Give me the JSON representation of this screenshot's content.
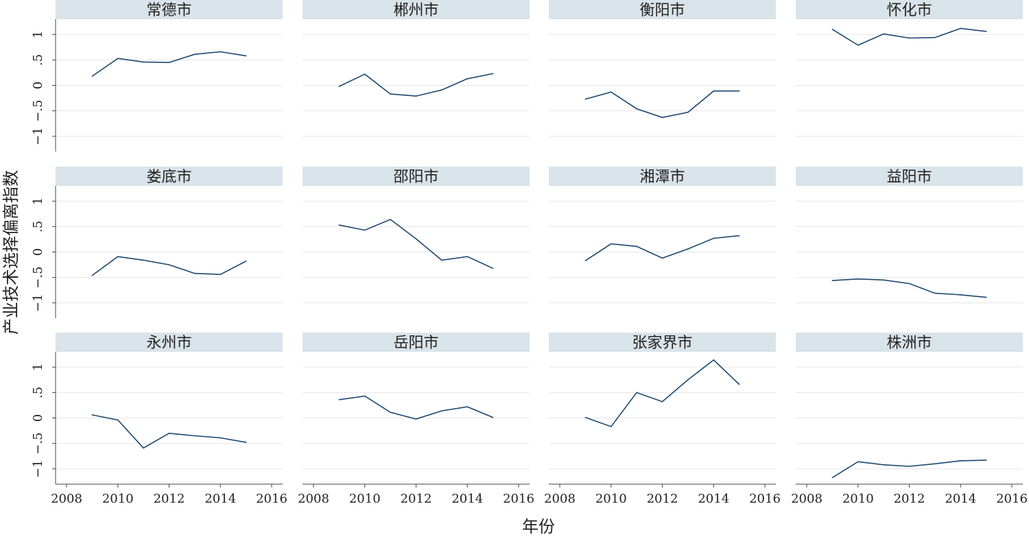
{
  "chart_data": {
    "type": "line",
    "xlabel": "年份",
    "ylabel": "产业技术选择偏离指数",
    "xlim": [
      2008,
      2016
    ],
    "ylim": [
      -1.3,
      1.3
    ],
    "x_ticks": [
      2008,
      2010,
      2012,
      2014,
      2016
    ],
    "y_ticks": [
      1,
      0.5,
      0,
      -0.5,
      -1
    ],
    "y_tick_labels": [
      "1",
      ".5",
      "0",
      "−.5",
      "−1"
    ],
    "grid": true,
    "line_color": "#1a476f",
    "strip_color": "#d9e3ea",
    "panels": [
      {
        "name": "常德市",
        "x": [
          2009,
          2010,
          2011,
          2012,
          2013,
          2014,
          2015
        ],
        "y": [
          0.18,
          0.53,
          0.46,
          0.45,
          0.61,
          0.66,
          0.58
        ]
      },
      {
        "name": "郴州市",
        "x": [
          2009,
          2010,
          2011,
          2012,
          2013,
          2014,
          2015
        ],
        "y": [
          -0.02,
          0.22,
          -0.17,
          -0.21,
          -0.09,
          0.13,
          0.23
        ]
      },
      {
        "name": "衡阳市",
        "x": [
          2009,
          2010,
          2011,
          2012,
          2013,
          2014,
          2015
        ],
        "y": [
          -0.27,
          -0.13,
          -0.46,
          -0.63,
          -0.53,
          -0.11,
          -0.11
        ]
      },
      {
        "name": "怀化市",
        "x": [
          2009,
          2010,
          2011,
          2012,
          2013,
          2014,
          2015
        ],
        "y": [
          1.1,
          0.79,
          1.01,
          0.93,
          0.94,
          1.12,
          1.06
        ]
      },
      {
        "name": "娄底市",
        "x": [
          2009,
          2010,
          2011,
          2012,
          2013,
          2014,
          2015
        ],
        "y": [
          -0.46,
          -0.09,
          -0.16,
          -0.25,
          -0.42,
          -0.44,
          -0.18
        ]
      },
      {
        "name": "邵阳市",
        "x": [
          2009,
          2010,
          2011,
          2012,
          2013,
          2014,
          2015
        ],
        "y": [
          0.53,
          0.43,
          0.64,
          0.26,
          -0.16,
          -0.09,
          -0.32
        ]
      },
      {
        "name": "湘潭市",
        "x": [
          2009,
          2010,
          2011,
          2012,
          2013,
          2014,
          2015
        ],
        "y": [
          -0.17,
          0.16,
          0.11,
          -0.12,
          0.06,
          0.27,
          0.32
        ]
      },
      {
        "name": "益阳市",
        "x": [
          2009,
          2010,
          2011,
          2012,
          2013,
          2014,
          2015
        ],
        "y": [
          -0.56,
          -0.53,
          -0.55,
          -0.62,
          -0.81,
          -0.84,
          -0.89
        ]
      },
      {
        "name": "永州市",
        "x": [
          2009,
          2010,
          2011,
          2012,
          2013,
          2014,
          2015
        ],
        "y": [
          0.06,
          -0.04,
          -0.59,
          -0.3,
          -0.35,
          -0.39,
          -0.48
        ]
      },
      {
        "name": "岳阳市",
        "x": [
          2009,
          2010,
          2011,
          2012,
          2013,
          2014,
          2015
        ],
        "y": [
          0.36,
          0.43,
          0.11,
          -0.02,
          0.14,
          0.22,
          0.01
        ]
      },
      {
        "name": "张家界市",
        "x": [
          2009,
          2010,
          2011,
          2012,
          2013,
          2014,
          2015
        ],
        "y": [
          0.01,
          -0.17,
          0.5,
          0.32,
          0.75,
          1.14,
          0.66
        ]
      },
      {
        "name": "株洲市",
        "x": [
          2009,
          2010,
          2011,
          2012,
          2013,
          2014,
          2015
        ],
        "y": [
          -1.17,
          -0.86,
          -0.92,
          -0.95,
          -0.9,
          -0.84,
          -0.83
        ]
      }
    ]
  }
}
